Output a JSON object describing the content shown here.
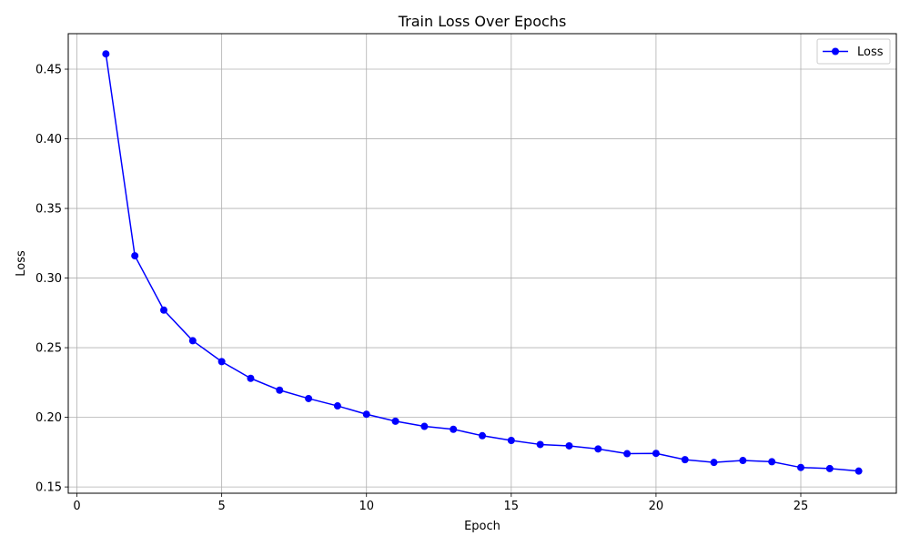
{
  "chart_data": {
    "type": "line",
    "title": "Train Loss Over Epochs",
    "xlabel": "Epoch",
    "ylabel": "Loss",
    "xlim": [
      -0.3,
      28.3
    ],
    "ylim": [
      0.1455,
      0.4755
    ],
    "xticks": [
      0,
      5,
      10,
      15,
      20,
      25
    ],
    "yticks": [
      0.15,
      0.2,
      0.25,
      0.3,
      0.35,
      0.4,
      0.45
    ],
    "xtick_labels": [
      "0",
      "5",
      "10",
      "15",
      "20",
      "25"
    ],
    "ytick_labels": [
      "0.15",
      "0.20",
      "0.25",
      "0.30",
      "0.35",
      "0.40",
      "0.45"
    ],
    "grid": true,
    "legend_position": "top-right",
    "series": [
      {
        "name": "Loss",
        "color": "#0000ff",
        "marker": "circle",
        "x": [
          1,
          2,
          3,
          4,
          5,
          6,
          7,
          8,
          9,
          10,
          11,
          12,
          13,
          14,
          15,
          16,
          17,
          18,
          19,
          20,
          21,
          22,
          23,
          24,
          25,
          26,
          27
        ],
        "y": [
          0.461,
          0.316,
          0.277,
          0.255,
          0.24,
          0.228,
          0.2195,
          0.2135,
          0.2082,
          0.2022,
          0.1972,
          0.1935,
          0.1914,
          0.1868,
          0.1834,
          0.1805,
          0.1795,
          0.1773,
          0.1739,
          0.1741,
          0.1696,
          0.1676,
          0.169,
          0.1681,
          0.164,
          0.1632,
          0.1614
        ]
      }
    ]
  }
}
